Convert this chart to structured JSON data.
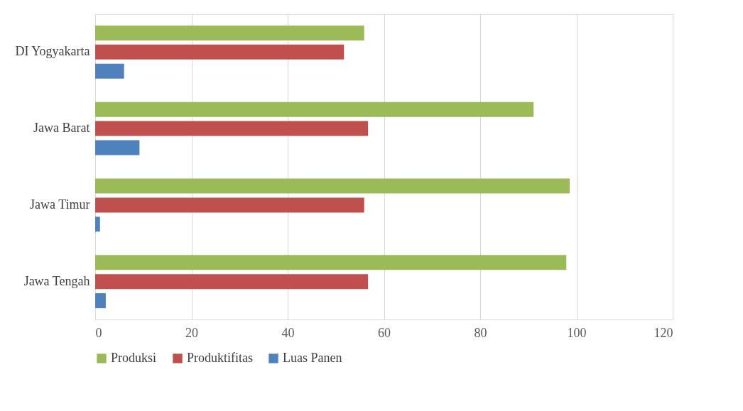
{
  "chart_data": {
    "type": "bar",
    "orientation": "horizontal",
    "categories": [
      "DI Yogyakarta",
      "Jawa Barat",
      "Jawa Timur",
      "Jawa Tengah"
    ],
    "series": [
      {
        "name": "Produksi",
        "color": "#9bbb59",
        "values": [
          55.9,
          91.1,
          98.6,
          97.9
        ]
      },
      {
        "name": "Produktifitas",
        "color": "#c0504d",
        "values": [
          51.7,
          56.7,
          55.9,
          56.7
        ]
      },
      {
        "name": "Luas Panen",
        "color": "#4f81bd",
        "values": [
          6.0,
          9.2,
          1.0,
          2.2
        ]
      }
    ],
    "xlim": [
      0,
      120
    ],
    "xticks": [
      0,
      20,
      40,
      60,
      80,
      100,
      120
    ],
    "grid": "x",
    "legend": "bottom"
  }
}
